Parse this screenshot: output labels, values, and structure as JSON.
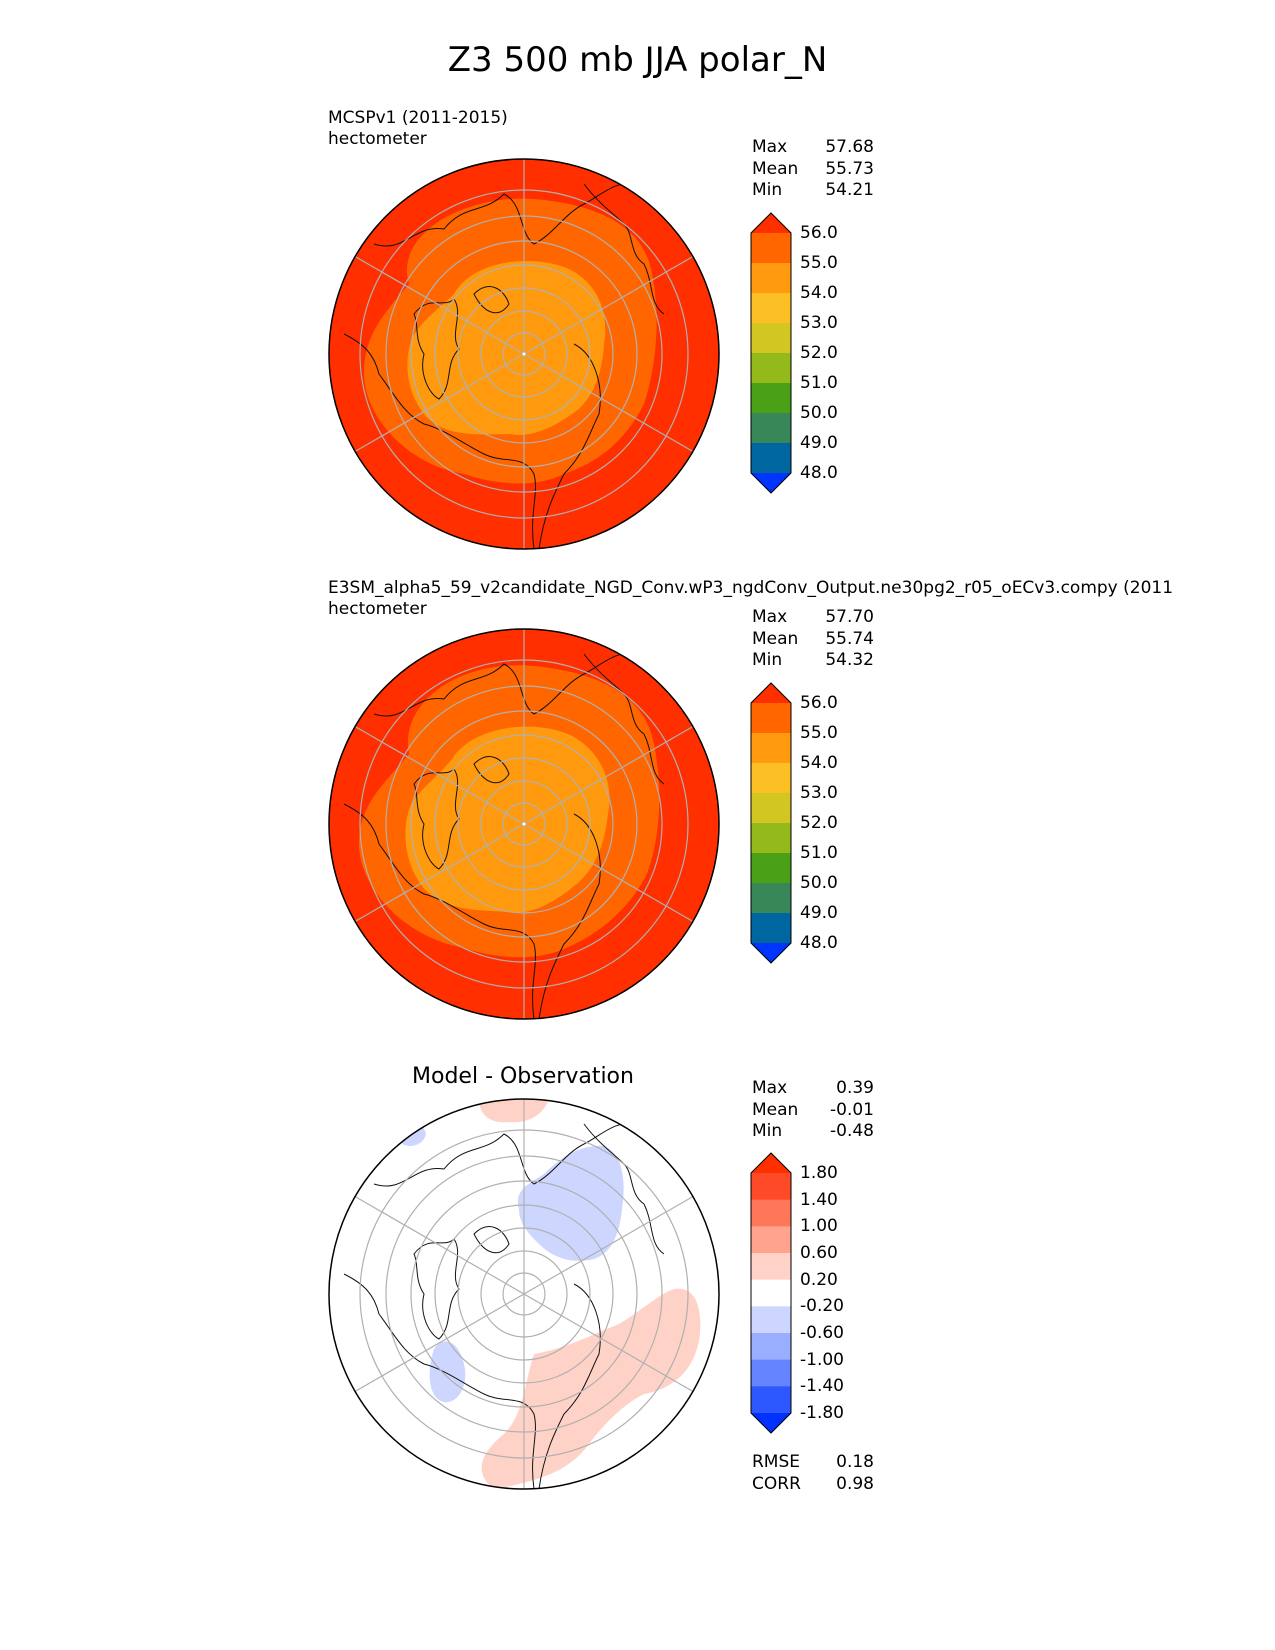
{
  "figure": {
    "title": "Z3 500 mb JJA polar_N"
  },
  "chart_data": [
    {
      "type": "heatmap",
      "name": "test",
      "title_line1": "MCSPv1 (2011-2015)",
      "title_line2": "hectometer",
      "stats": [
        {
          "label": "Max",
          "value": "57.68"
        },
        {
          "label": "Mean",
          "value": "55.73"
        },
        {
          "label": "Min",
          "value": "54.21"
        }
      ],
      "colorbar": {
        "levels": [
          "48.0",
          "49.0",
          "50.0",
          "51.0",
          "52.0",
          "53.0",
          "54.0",
          "55.0",
          "56.0"
        ],
        "colors": [
          "#0035ff",
          "#0066a0",
          "#388758",
          "#4aa017",
          "#93b91a",
          "#d2c623",
          "#fdc024",
          "#ff9a0f",
          "#ff6600",
          "#ff2f00"
        ],
        "extend": "both"
      }
    },
    {
      "type": "heatmap",
      "name": "reference",
      "title_line1": "E3SM_alpha5_59_v2candidate_NGD_Conv.wP3_ngdConv_Output.ne30pg2_r05_oECv3.compy (2011",
      "title_line2": "hectometer",
      "stats": [
        {
          "label": "Max",
          "value": "57.70"
        },
        {
          "label": "Mean",
          "value": "55.74"
        },
        {
          "label": "Min",
          "value": "54.32"
        }
      ],
      "colorbar": {
        "levels": [
          "48.0",
          "49.0",
          "50.0",
          "51.0",
          "52.0",
          "53.0",
          "54.0",
          "55.0",
          "56.0"
        ],
        "colors": [
          "#0035ff",
          "#0066a0",
          "#388758",
          "#4aa017",
          "#93b91a",
          "#d2c623",
          "#fdc024",
          "#ff9a0f",
          "#ff6600",
          "#ff2f00"
        ],
        "extend": "both"
      }
    },
    {
      "type": "heatmap",
      "name": "difference",
      "title": "Model - Observation",
      "stats": [
        {
          "label": "Max",
          "value": "0.39"
        },
        {
          "label": "Mean",
          "value": "-0.01"
        },
        {
          "label": "Min",
          "value": "-0.48"
        }
      ],
      "metrics": [
        {
          "label": "RMSE",
          "value": "0.18"
        },
        {
          "label": "CORR",
          "value": "0.98"
        }
      ],
      "colorbar": {
        "levels": [
          "-1.80",
          "-1.40",
          "-1.00",
          "-0.60",
          "-0.20",
          "0.20",
          "0.60",
          "1.00",
          "1.40",
          "1.80"
        ],
        "colors": [
          "#0032ff",
          "#2e58ff",
          "#6584ff",
          "#99aeff",
          "#cdd6ff",
          "#ffffff",
          "#ffd2c8",
          "#ffa38f",
          "#ff7659",
          "#ff4a28",
          "#ff2f00"
        ],
        "extend": "both"
      }
    }
  ]
}
